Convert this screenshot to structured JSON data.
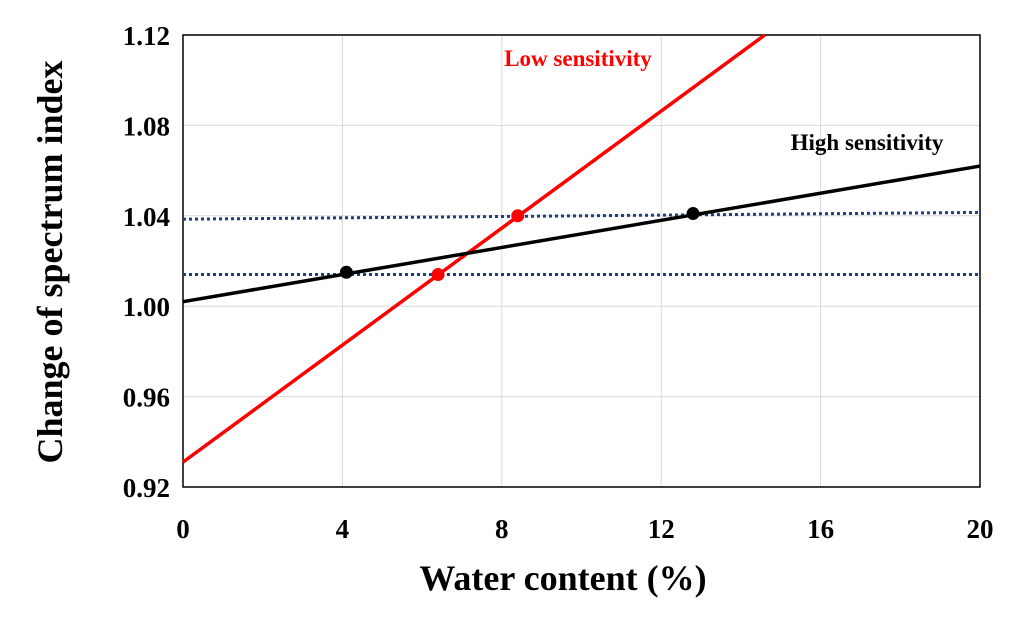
{
  "chart_data": {
    "type": "line",
    "xlabel": "Water content (%)",
    "ylabel": "Change of spectrum index",
    "xlim": [
      0,
      20
    ],
    "ylim": [
      0.92,
      1.12
    ],
    "x_ticks": [
      "0",
      "4",
      "8",
      "12",
      "16",
      "20"
    ],
    "y_ticks": [
      "0.92",
      "0.96",
      "1.00",
      "1.04",
      "1.08",
      "1.12"
    ],
    "x_tick_values": [
      0,
      4,
      8,
      12,
      16,
      20
    ],
    "y_tick_values": [
      0.92,
      0.96,
      1.0,
      1.04,
      1.08,
      1.12
    ],
    "grid": true,
    "series": [
      {
        "name": "Low sensitivity",
        "color": "#ff0000",
        "line": [
          [
            0,
            0.931
          ],
          [
            14.6,
            1.12
          ]
        ],
        "points": [
          [
            6.4,
            1.014
          ],
          [
            8.4,
            1.04
          ]
        ]
      },
      {
        "name": "High sensitivity",
        "color": "#000000",
        "line": [
          [
            0,
            1.002
          ],
          [
            20,
            1.062
          ]
        ],
        "points": [
          [
            4.1,
            1.015
          ],
          [
            12.8,
            1.041
          ]
        ]
      }
    ],
    "reference_lines": [
      {
        "style": "dotted",
        "color": "#1f3f7a",
        "line": [
          [
            0,
            1.0385
          ],
          [
            20,
            1.0415
          ]
        ]
      },
      {
        "style": "dotted",
        "color": "#1f3f7a",
        "line": [
          [
            0,
            1.014
          ],
          [
            20,
            1.014
          ]
        ]
      }
    ]
  }
}
